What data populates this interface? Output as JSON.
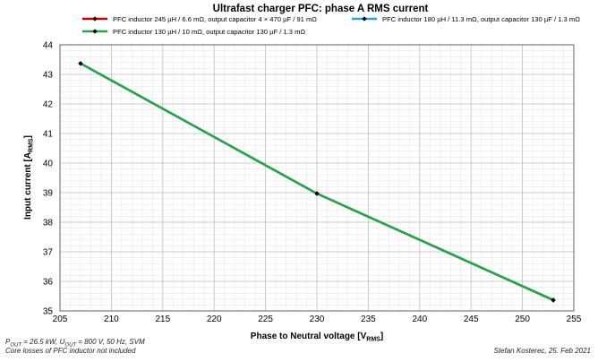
{
  "chart_data": {
    "type": "line",
    "title": "Ultrafast charger PFC: phase A RMS current",
    "xlabel": {
      "main": "Phase to Neutral voltage [V",
      "sub": "RMS",
      "tail": "]"
    },
    "ylabel": {
      "main": "Input current [A",
      "sub": "RMS",
      "tail": "]"
    },
    "xlim": [
      205,
      255
    ],
    "ylim": [
      35,
      44
    ],
    "xticks": [
      205,
      210,
      215,
      220,
      225,
      230,
      235,
      240,
      245,
      250,
      255
    ],
    "yticks": [
      35,
      36,
      37,
      38,
      39,
      40,
      41,
      42,
      43,
      44
    ],
    "grid": true,
    "legend_position": "top",
    "series": [
      {
        "name": "PFC inductor 245 µH / 6.6 mΩ, output capacitor 4 × 470 µF / 91 mΩ",
        "color": "#c00000",
        "marker": "diamond",
        "x": [
          207,
          230,
          253
        ],
        "y": [
          43.37,
          38.97,
          35.36
        ]
      },
      {
        "name": "PFC inductor 180 µH / 11.3 mΩ, output capacitor 130 µF / 1.3 mΩ",
        "color": "#2aa3d8",
        "marker": "diamond",
        "x": [
          207,
          230,
          253
        ],
        "y": [
          43.37,
          38.97,
          35.37
        ]
      },
      {
        "name": "PFC inductor 130 µH / 10 mΩ, output capacitor 130 µF / 1.3 mΩ",
        "color": "#25a24a",
        "marker": "diamond",
        "x": [
          207,
          230,
          253
        ],
        "y": [
          43.37,
          38.97,
          35.37
        ]
      }
    ]
  },
  "notes": {
    "left_line1": {
      "p": "P",
      "p_sub": "OUT",
      "p_rest": " = 26.5 kW, U",
      "u_sub": "OUT",
      "u_rest": " = 800 V, 50 Hz, SVM"
    },
    "left_line2": "Core losses of PFC inductor not included",
    "right": "Stefan Kosterec, 25. Feb 2021"
  }
}
